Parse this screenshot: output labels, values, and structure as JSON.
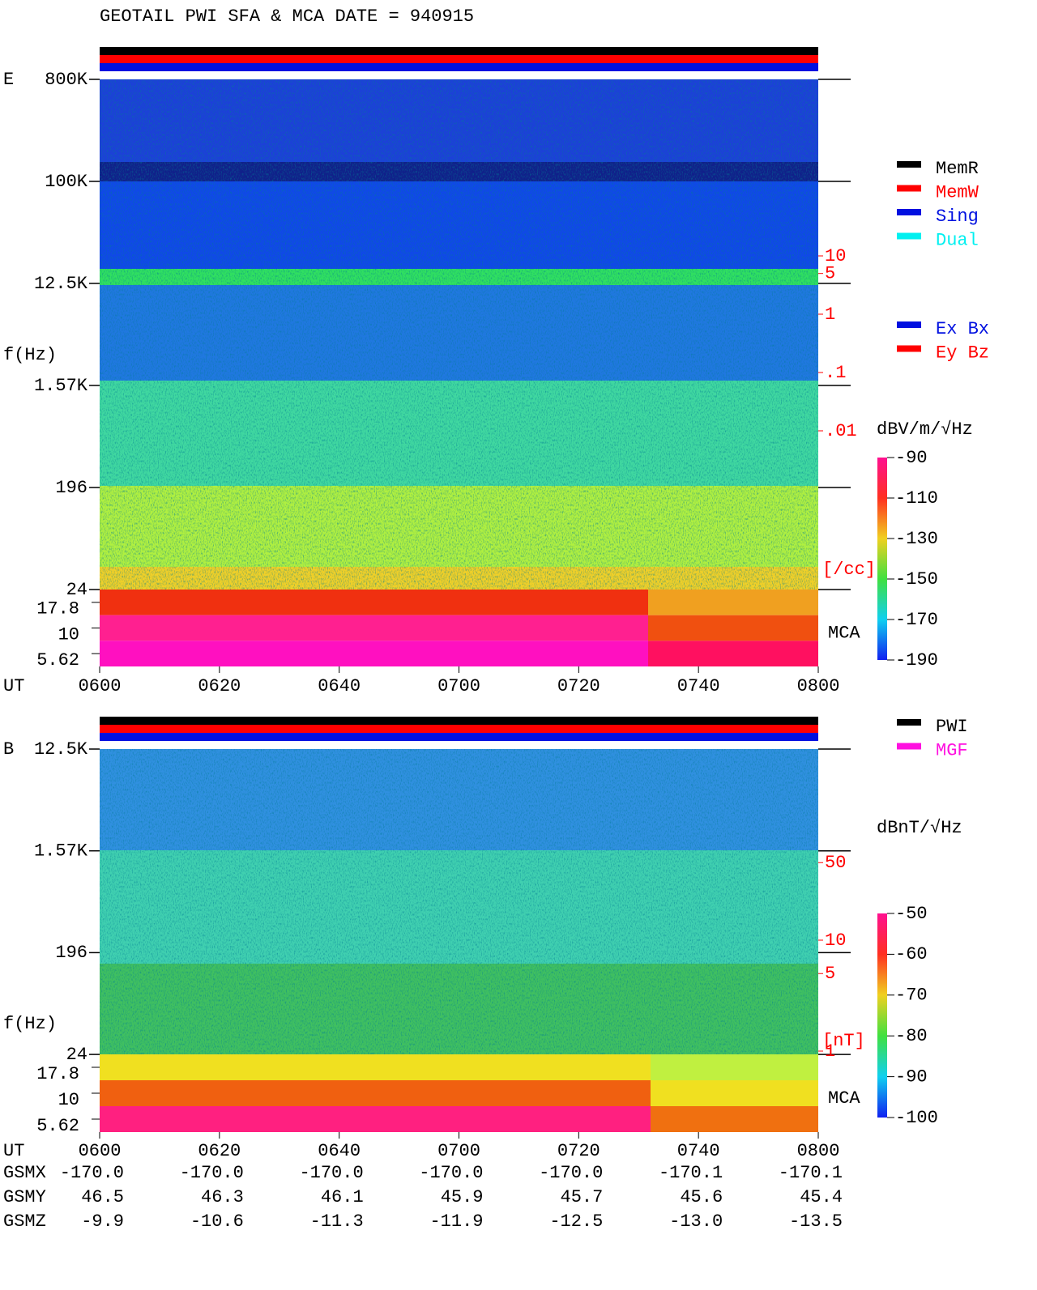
{
  "title": "GEOTAIL  PWI SFA & MCA   DATE = 940915",
  "panels": [
    {
      "component": "E",
      "freq_axis_label": "f(Hz)",
      "freq_ticks": [
        "800K",
        "100K",
        "12.5K",
        "1.57K",
        "196",
        "24"
      ],
      "mca_ticks": [
        "17.8",
        "10",
        "5.62"
      ],
      "mca_label": "MCA",
      "density_ticks": [
        10,
        5,
        1,
        {
          "value": 0.1,
          "label": ".1"
        },
        {
          "value": 0.01,
          "label": ".01"
        }
      ],
      "density_unit": "[/cc]",
      "colorbar_unit": "dBV/m/√Hz",
      "colorbar_lim": [
        -190,
        -90
      ],
      "colorbar_ticks": [
        -90,
        -110,
        -130,
        -150,
        -170,
        -190
      ],
      "time_label": "UT",
      "time_ticks": [
        "0600",
        "0620",
        "0640",
        "0700",
        "0720",
        "0740",
        "0800"
      ],
      "legend": [
        {
          "name": "MemR",
          "color": "#000000"
        },
        {
          "name": "MemW",
          "color": "#ff0000"
        },
        {
          "name": "Sing",
          "color": "#0010e0"
        },
        {
          "name": "Dual",
          "color": "#00f0f0"
        }
      ],
      "legend2": [
        {
          "name": "Ex Bx",
          "color": "#0010e0"
        },
        {
          "name": "Ey Bz",
          "color": "#ff0000"
        }
      ]
    },
    {
      "component": "B",
      "freq_axis_label": "f(Hz)",
      "freq_ticks": [
        "12.5K",
        "1.57K",
        "196",
        "24"
      ],
      "mca_ticks": [
        "17.8",
        "10",
        "5.62"
      ],
      "mca_label": "MCA",
      "density_ticks": [
        50,
        10,
        5,
        1
      ],
      "density_unit": "[nT]",
      "colorbar_unit": "dBnT/√Hz",
      "colorbar_lim": [
        -100,
        -50
      ],
      "colorbar_ticks": [
        -50,
        -60,
        -70,
        -80,
        -90,
        -100
      ],
      "time_label": "UT",
      "time_ticks": [
        "0600",
        "0620",
        "0640",
        "0700",
        "0720",
        "0740",
        "0800"
      ],
      "legend": [
        {
          "name": "PWI",
          "color": "#000000"
        },
        {
          "name": "MGF",
          "color": "#ff10e0"
        }
      ]
    }
  ],
  "orbit": [
    {
      "label": "GSMX",
      "values": [
        "-170.0",
        "-170.0",
        "-170.0",
        "-170.0",
        "-170.0",
        "-170.1",
        "-170.1"
      ]
    },
    {
      "label": "GSMY",
      "values": [
        "46.5",
        "46.3",
        "46.1",
        "45.9",
        "45.7",
        "45.6",
        "45.4"
      ]
    },
    {
      "label": "GSMZ",
      "values": [
        "-9.9",
        "-10.6",
        "-11.3",
        "-11.9",
        "-12.5",
        "-13.0",
        "-13.5"
      ]
    }
  ]
}
